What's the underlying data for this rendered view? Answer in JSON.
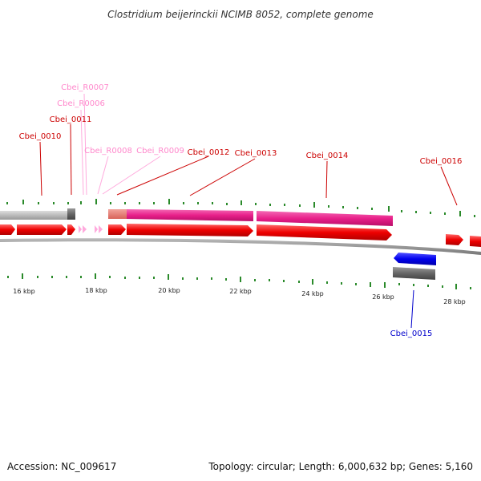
{
  "title": "Clostridium beijerinckii NCIMB 8052, complete genome",
  "footer": {
    "accession": "Accession: NC_009617",
    "summary": "Topology: circular; Length: 6,000,632 bp; Genes: 5,160"
  },
  "colors": {
    "cds": "#ff0000",
    "rna": "#ffaadd",
    "reverse_cds": "#0000ff",
    "gene_grey": "#bbbbbb",
    "gene_dark": "#666666",
    "magenta": "#e8208a",
    "salmon": "#e87a70",
    "tick_green": "#2a8a2a",
    "backbone": "#888888"
  },
  "scale_labels": [
    "16 kbp",
    "18 kbp",
    "20 kbp",
    "22 kbp",
    "24 kbp",
    "26 kbp",
    "28 kbp"
  ],
  "gene_labels": [
    {
      "text": "Cbei_R0007",
      "type": "rna"
    },
    {
      "text": "Cbei_R0006",
      "type": "rna"
    },
    {
      "text": "Cbei_0011",
      "type": "cds"
    },
    {
      "text": "Cbei_0010",
      "type": "cds"
    },
    {
      "text": "Cbei_R0008",
      "type": "rna"
    },
    {
      "text": "Cbei_R0009",
      "type": "rna"
    },
    {
      "text": "Cbei_0012",
      "type": "cds"
    },
    {
      "text": "Cbei_0013",
      "type": "cds"
    },
    {
      "text": "Cbei_0014",
      "type": "cds"
    },
    {
      "text": "Cbei_0016",
      "type": "cds"
    },
    {
      "text": "Cbei_0015",
      "type": "reverse_cds"
    }
  ]
}
